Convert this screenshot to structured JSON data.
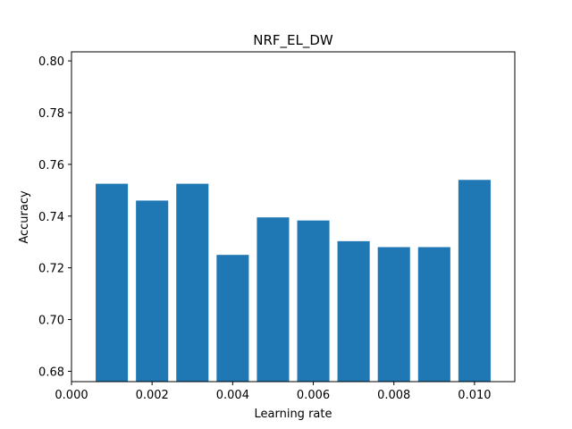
{
  "chart_data": {
    "type": "bar",
    "title": "NRF_EL_DW",
    "xlabel": "Learning rate",
    "ylabel": "Accuracy",
    "x": [
      0.001,
      0.002,
      0.003,
      0.004,
      0.005,
      0.006,
      0.007,
      0.008,
      0.009,
      0.01
    ],
    "values": [
      0.7525,
      0.746,
      0.7525,
      0.725,
      0.7395,
      0.7383,
      0.7303,
      0.728,
      0.728,
      0.754
    ],
    "bar_width": 0.0008,
    "xlim": [
      0.0,
      0.011
    ],
    "ylim": [
      0.676,
      0.8035
    ],
    "xticks": [
      0.0,
      0.002,
      0.004,
      0.006,
      0.008,
      0.01
    ],
    "xtick_labels": [
      "0.000",
      "0.002",
      "0.004",
      "0.006",
      "0.008",
      "0.010"
    ],
    "yticks": [
      0.68,
      0.7,
      0.72,
      0.74,
      0.76,
      0.78,
      0.8
    ],
    "ytick_labels": [
      "0.68",
      "0.70",
      "0.72",
      "0.74",
      "0.76",
      "0.78",
      "0.80"
    ],
    "bar_color": "#1f77b4",
    "grid": false,
    "legend": "none"
  }
}
